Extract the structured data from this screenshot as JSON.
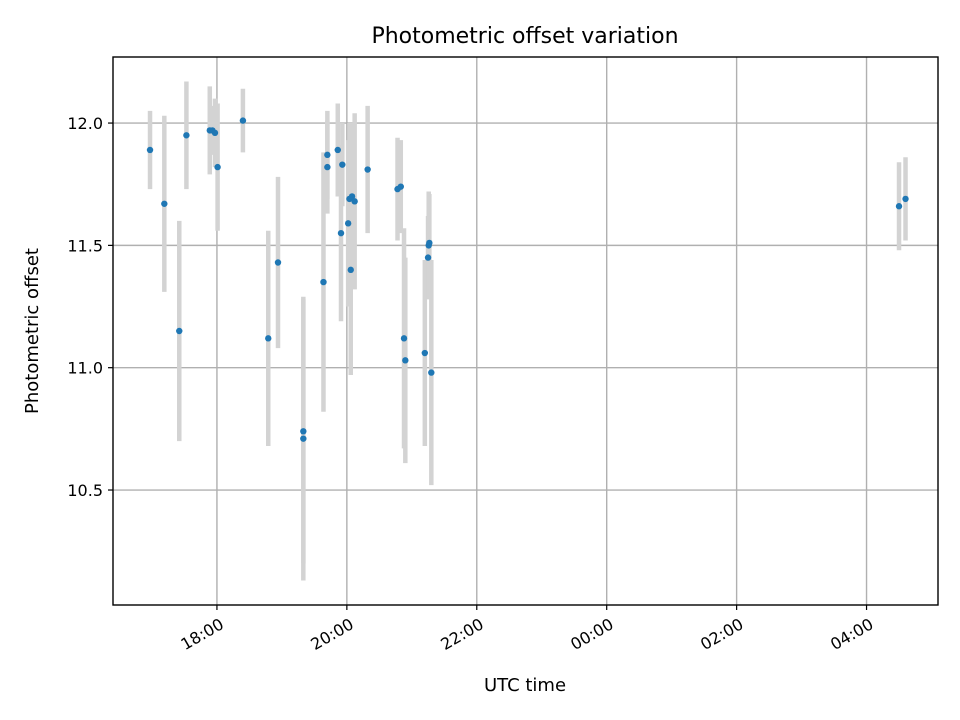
{
  "chart_data": {
    "type": "scatter",
    "title": "Photometric offset variation",
    "xlabel": "UTC time",
    "ylabel": "Photometric offset",
    "x_unit": "hours since 00:00 UTC of first day",
    "xlim": [
      16.4,
      29.1
    ],
    "ylim": [
      10.03,
      12.27
    ],
    "grid": true,
    "x_ticks": [
      {
        "value": 18,
        "label": "18:00"
      },
      {
        "value": 20,
        "label": "20:00"
      },
      {
        "value": 22,
        "label": "22:00"
      },
      {
        "value": 24,
        "label": "00:00"
      },
      {
        "value": 26,
        "label": "02:00"
      },
      {
        "value": 28,
        "label": "04:00"
      }
    ],
    "y_ticks": [
      {
        "value": 10.5,
        "label": "10.5"
      },
      {
        "value": 11.0,
        "label": "11.0"
      },
      {
        "value": 11.5,
        "label": "11.5"
      },
      {
        "value": 12.0,
        "label": "12.0"
      }
    ],
    "series": [
      {
        "color": "#1f77b4",
        "error_color": "#d3d3d3",
        "points": [
          {
            "x": 16.97,
            "y": 11.89,
            "err": 0.16
          },
          {
            "x": 17.19,
            "y": 11.67,
            "err": 0.36
          },
          {
            "x": 17.42,
            "y": 11.15,
            "err": 0.45
          },
          {
            "x": 17.53,
            "y": 11.95,
            "err": 0.22
          },
          {
            "x": 17.89,
            "y": 11.97,
            "err": 0.18
          },
          {
            "x": 17.93,
            "y": 11.97,
            "err": 0.1
          },
          {
            "x": 17.97,
            "y": 11.96,
            "err": 0.14
          },
          {
            "x": 18.01,
            "y": 11.82,
            "err": 0.26
          },
          {
            "x": 18.4,
            "y": 12.01,
            "err": 0.13
          },
          {
            "x": 18.79,
            "y": 11.12,
            "err": 0.44
          },
          {
            "x": 18.94,
            "y": 11.43,
            "err": 0.35
          },
          {
            "x": 19.33,
            "y": 10.74,
            "err": 0.54
          },
          {
            "x": 19.33,
            "y": 10.71,
            "err": 0.58
          },
          {
            "x": 19.64,
            "y": 11.35,
            "err": 0.53
          },
          {
            "x": 19.7,
            "y": 11.87,
            "err": 0.18
          },
          {
            "x": 19.7,
            "y": 11.82,
            "err": 0.19
          },
          {
            "x": 19.86,
            "y": 11.89,
            "err": 0.19
          },
          {
            "x": 19.91,
            "y": 11.55,
            "err": 0.36
          },
          {
            "x": 19.93,
            "y": 11.83,
            "err": 0.17
          },
          {
            "x": 20.02,
            "y": 11.59,
            "err": 0.34
          },
          {
            "x": 20.04,
            "y": 11.69,
            "err": 0.31
          },
          {
            "x": 20.06,
            "y": 11.4,
            "err": 0.43
          },
          {
            "x": 20.08,
            "y": 11.7,
            "err": 0.3
          },
          {
            "x": 20.12,
            "y": 11.68,
            "err": 0.36
          },
          {
            "x": 20.32,
            "y": 11.81,
            "err": 0.26
          },
          {
            "x": 20.78,
            "y": 11.73,
            "err": 0.21
          },
          {
            "x": 20.83,
            "y": 11.74,
            "err": 0.19
          },
          {
            "x": 20.88,
            "y": 11.12,
            "err": 0.45
          },
          {
            "x": 20.9,
            "y": 11.03,
            "err": 0.42
          },
          {
            "x": 21.2,
            "y": 11.06,
            "err": 0.38
          },
          {
            "x": 21.25,
            "y": 11.45,
            "err": 0.17
          },
          {
            "x": 21.26,
            "y": 11.5,
            "err": 0.22
          },
          {
            "x": 21.27,
            "y": 11.51,
            "err": 0.2
          },
          {
            "x": 21.3,
            "y": 10.98,
            "err": 0.46
          },
          {
            "x": 28.5,
            "y": 11.66,
            "err": 0.18
          },
          {
            "x": 28.6,
            "y": 11.69,
            "err": 0.17
          }
        ]
      }
    ]
  }
}
